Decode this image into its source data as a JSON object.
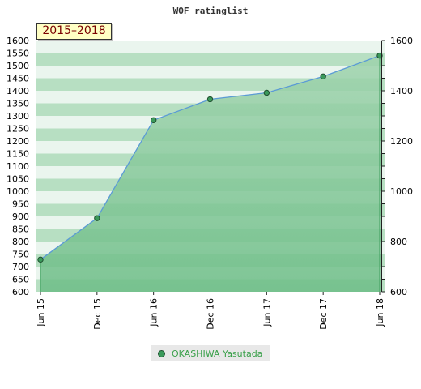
{
  "chart_data": {
    "type": "area",
    "title": "WOF ratinglist",
    "period_label": "2015–2018",
    "categories": [
      "Jun 15",
      "Dec 15",
      "Jun 16",
      "Dec 16",
      "Jun 17",
      "Dec 17",
      "Jun 18"
    ],
    "series": [
      {
        "name": "OKASHIWA Yasutada",
        "values": [
          728,
          893,
          1283,
          1366,
          1392,
          1457,
          1540
        ]
      }
    ],
    "left_axis": {
      "ylim": [
        600,
        1600
      ],
      "ticks": [
        600,
        650,
        700,
        750,
        800,
        850,
        900,
        950,
        1000,
        1050,
        1100,
        1150,
        1200,
        1250,
        1300,
        1350,
        1400,
        1450,
        1500,
        1550,
        1600
      ]
    },
    "right_axis": {
      "ylim": [
        600,
        1600
      ],
      "ticks": [
        600,
        800,
        1000,
        1200,
        1400,
        1600
      ]
    },
    "legend_position": "bottom",
    "colors": {
      "line": "#5b9bd5",
      "area_top": "#9fd3ad",
      "area_bottom": "#6cbd86",
      "marker_fill": "#3b9a5b",
      "marker_stroke": "#1f4f2f",
      "band_dark": "#b7dfc2",
      "band_light": "#eaf5ee",
      "legend_text": "#3aa04a",
      "period_text": "#7a0000",
      "period_bg": "#ffffc4"
    }
  }
}
